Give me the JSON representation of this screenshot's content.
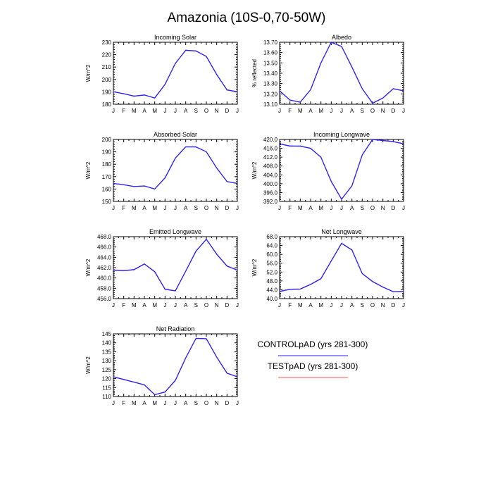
{
  "figure": {
    "title": "Amazonia (10S-0,70-50W)"
  },
  "months": [
    "J",
    "F",
    "M",
    "A",
    "M",
    "J",
    "J",
    "A",
    "S",
    "O",
    "N",
    "D",
    "J"
  ],
  "legend": [
    {
      "label": "CONTROLpAD (yrs 281-300)",
      "color": "#2222ff"
    },
    {
      "label": "TESTpAD (yrs 281-300)",
      "color": "#ff5555"
    }
  ],
  "chart_data": [
    {
      "type": "line",
      "title": "Incoming Solar",
      "ylabel": "W/m^2",
      "ylim": [
        180,
        230
      ],
      "yticks": [
        "180",
        "190",
        "200",
        "210",
        "220",
        "230"
      ],
      "series": [
        {
          "values": [
            190,
            188.5,
            186.5,
            187.5,
            185,
            196,
            213,
            223.5,
            223,
            218.5,
            204,
            191.5,
            190
          ],
          "color": "#2222ff"
        },
        {
          "values": [
            190.2,
            188.3,
            186.7,
            187.3,
            185.2,
            196.2,
            212.8,
            223.7,
            222.8,
            218.7,
            203.8,
            191.7,
            190.2
          ],
          "color": "#ff5555"
        }
      ]
    },
    {
      "type": "line",
      "title": "Albedo",
      "ylabel": "% reflected",
      "ylim": [
        13.1,
        13.7
      ],
      "yticks": [
        "13.10",
        "13.20",
        "13.30",
        "13.40",
        "13.50",
        "13.60",
        "13.70"
      ],
      "series": [
        {
          "values": [
            13.23,
            13.14,
            13.12,
            13.24,
            13.5,
            13.7,
            13.66,
            13.46,
            13.25,
            13.11,
            13.16,
            13.25,
            13.23
          ],
          "color": "#2222ff"
        },
        {
          "values": [
            13.231,
            13.141,
            13.121,
            13.241,
            13.501,
            13.699,
            13.659,
            13.461,
            13.251,
            13.111,
            13.161,
            13.251,
            13.231
          ],
          "color": "#ff5555"
        }
      ]
    },
    {
      "type": "line",
      "title": "Absorbed Solar",
      "ylabel": "W/m^2",
      "ylim": [
        150,
        200
      ],
      "yticks": [
        "150",
        "160",
        "170",
        "180",
        "190",
        "200"
      ],
      "series": [
        {
          "values": [
            164.5,
            163.5,
            162,
            162.5,
            160,
            169,
            185,
            194,
            194,
            190,
            177,
            166,
            164.5
          ],
          "color": "#2222ff"
        },
        {
          "values": [
            164.6,
            163.4,
            162.1,
            162.4,
            160.1,
            169.1,
            184.9,
            194.1,
            193.9,
            190.1,
            176.9,
            166.1,
            164.6
          ],
          "color": "#ff5555"
        }
      ]
    },
    {
      "type": "line",
      "title": "Incoming Longwave",
      "ylabel": "W/m^2",
      "ylim": [
        392,
        420
      ],
      "yticks": [
        "392.0",
        "396.0",
        "400.0",
        "404.0",
        "408.0",
        "412.0",
        "416.0",
        "420.0"
      ],
      "series": [
        {
          "values": [
            418,
            417,
            417,
            416,
            412,
            401,
            393,
            399,
            413,
            420,
            419.5,
            419,
            418
          ],
          "color": "#2222ff"
        },
        {
          "values": [
            418.1,
            417.1,
            416.9,
            416.1,
            411.9,
            401.1,
            393.1,
            399.1,
            413.1,
            419.9,
            419.6,
            419.1,
            418.1
          ],
          "color": "#ff5555"
        }
      ]
    },
    {
      "type": "line",
      "title": "Emitted Longwave",
      "ylabel": "W/m^2",
      "ylim": [
        456,
        468
      ],
      "yticks": [
        "456.0",
        "458.0",
        "460.0",
        "462.0",
        "464.0",
        "466.0",
        "468.0"
      ],
      "series": [
        {
          "values": [
            461.5,
            461.4,
            461.6,
            462.7,
            461.2,
            457.8,
            457.5,
            461.3,
            465.2,
            467.5,
            464.6,
            462.3,
            461.5
          ],
          "color": "#2222ff"
        },
        {
          "values": [
            461.55,
            461.45,
            461.65,
            462.75,
            461.25,
            457.85,
            457.55,
            461.35,
            465.25,
            467.45,
            464.65,
            462.35,
            461.55
          ],
          "color": "#ff5555"
        }
      ]
    },
    {
      "type": "line",
      "title": "Net Longwave",
      "ylabel": "W/m^2",
      "ylim": [
        40,
        68
      ],
      "yticks": [
        "40.0",
        "44.0",
        "48.0",
        "52.0",
        "56.0",
        "60.0",
        "64.0",
        "68.0"
      ],
      "series": [
        {
          "values": [
            43.2,
            44.2,
            44.3,
            46.4,
            49,
            57,
            65,
            62,
            51.3,
            47.7,
            45.2,
            43.1,
            43.2
          ],
          "color": "#2222ff"
        },
        {
          "values": [
            43.3,
            44.3,
            44.4,
            46.5,
            49.1,
            57.1,
            64.9,
            61.9,
            51.4,
            47.8,
            45.3,
            43.2,
            43.3
          ],
          "color": "#ff5555"
        }
      ]
    },
    {
      "type": "line",
      "title": "Net Radiation",
      "ylabel": "W/m^2",
      "ylim": [
        110,
        145
      ],
      "yticks": [
        "110",
        "115",
        "120",
        "125",
        "130",
        "135",
        "140",
        "145"
      ],
      "series": [
        {
          "values": [
            121,
            119.5,
            118,
            116.5,
            111,
            112.5,
            119,
            131.5,
            142.5,
            142.3,
            132,
            123,
            121
          ],
          "color": "#2222ff"
        },
        {
          "values": [
            121.1,
            119.6,
            118.1,
            116.6,
            111.1,
            112.6,
            119.1,
            131.6,
            142.4,
            142.2,
            132.1,
            123.1,
            121.1
          ],
          "color": "#ff5555"
        }
      ]
    }
  ]
}
